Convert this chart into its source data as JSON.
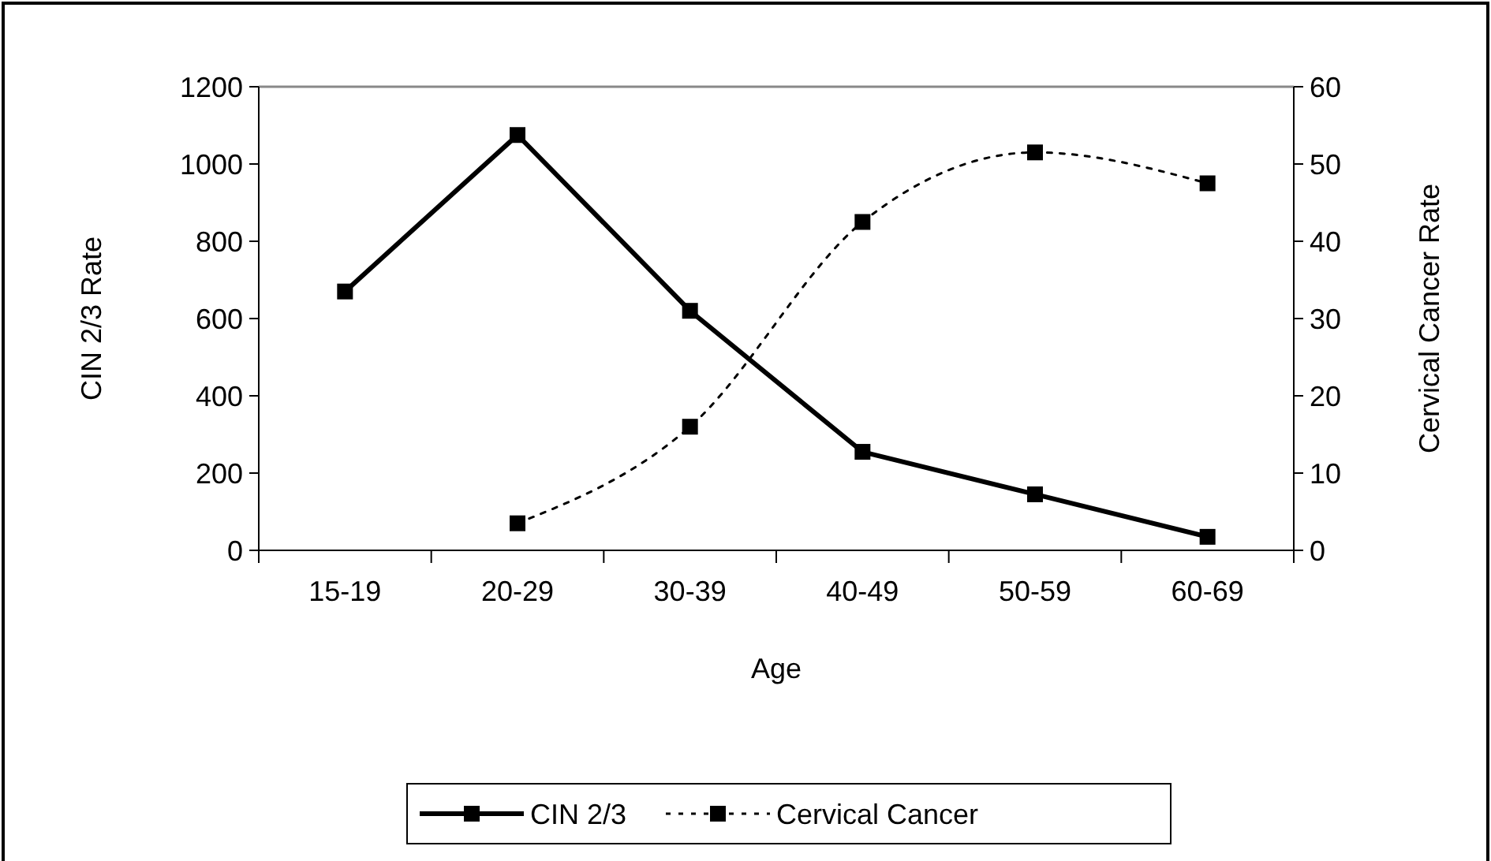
{
  "chart_data": {
    "type": "line",
    "xlabel": "Age",
    "ylabel": "CIN 2/3 Rate",
    "y2label": "Cervical Cancer Rate",
    "categories": [
      "15-19",
      "20-29",
      "30-39",
      "40-49",
      "50-59",
      "60-69"
    ],
    "ylim": [
      0,
      1200
    ],
    "yticks": [
      0,
      200,
      400,
      600,
      800,
      1000,
      1200
    ],
    "y2lim": [
      0,
      60
    ],
    "y2ticks": [
      0,
      10,
      20,
      30,
      40,
      50,
      60
    ],
    "marker": "square",
    "legend": "bottom",
    "grid": false,
    "series": [
      {
        "name": "CIN 2/3",
        "color": "#000000",
        "line_style": "solid",
        "values": [
          670,
          1075,
          620,
          255,
          145,
          35
        ]
      },
      {
        "name": "Cervical Cancer",
        "color": "#000000",
        "line_style": "dotted",
        "axis": "y2",
        "values": [
          null,
          3.5,
          16,
          42.5,
          51.5,
          47.5
        ]
      }
    ]
  }
}
